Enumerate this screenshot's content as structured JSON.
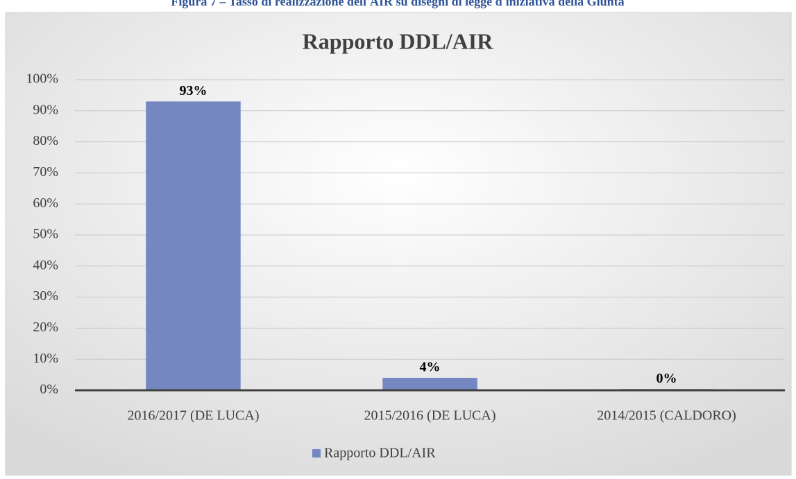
{
  "caption": "Figura 7 – Tasso di realizzazione dell'AIR su disegni di legge d'iniziativa della Giunta",
  "chart_data": {
    "type": "bar",
    "title": "Rapporto DDL/AIR",
    "categories": [
      "2016/2017 (DE LUCA)",
      "2015/2016 (DE LUCA)",
      "2014/2015 (CALDORO)"
    ],
    "series": [
      {
        "name": "Rapporto DDL/AIR",
        "color": "#7587c1",
        "values": [
          93,
          4,
          0.4
        ],
        "value_labels": [
          "93%",
          "4%",
          "0%"
        ]
      }
    ],
    "ylim": [
      0,
      100
    ],
    "yticks": [
      {
        "value": 0,
        "label": "0%"
      },
      {
        "value": 10,
        "label": "10%"
      },
      {
        "value": 20,
        "label": "20%"
      },
      {
        "value": 30,
        "label": "30%"
      },
      {
        "value": 40,
        "label": "40%"
      },
      {
        "value": 50,
        "label": "50%"
      },
      {
        "value": 60,
        "label": "60%"
      },
      {
        "value": 70,
        "label": "70%"
      },
      {
        "value": 80,
        "label": "80%"
      },
      {
        "value": 90,
        "label": "90%"
      },
      {
        "value": 100,
        "label": "100%"
      }
    ],
    "grid": true,
    "legend": "bottom"
  }
}
